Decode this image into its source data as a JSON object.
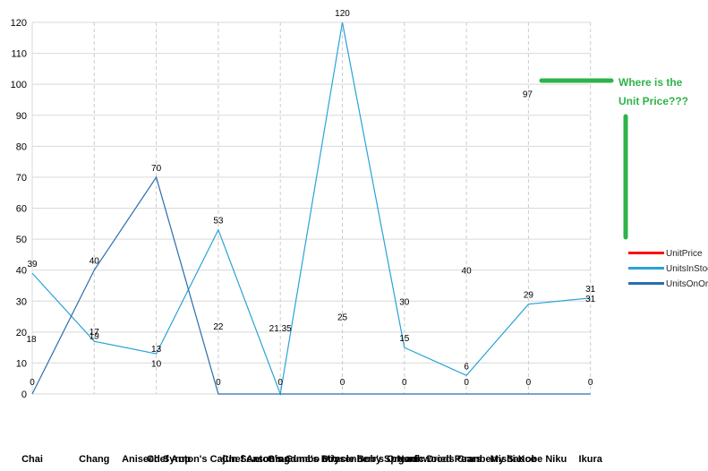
{
  "chart_data": {
    "type": "line",
    "categories": [
      "Chai",
      "Chang",
      "Aniseed Syrup",
      "Chef Anton's Cajun Seasoning",
      "Chef Anton's Gumbo Mix",
      "Grandma's Boysenberry Spread",
      "Uncle Bob's Organic Dried Pears",
      "Northwoods Cranberry Sauce",
      "Mishi Kobe Niku",
      "Ikura"
    ],
    "series": [
      {
        "name": "UnitPrice",
        "values": [
          18,
          19,
          10,
          22,
          21.35,
          25,
          30,
          40,
          97,
          31
        ],
        "color": "#ff0000",
        "drawn": false
      },
      {
        "name": "UnitsInStock",
        "values": [
          39,
          17,
          13,
          53,
          0,
          120,
          15,
          6,
          29,
          31
        ],
        "color": "#29a3d6"
      },
      {
        "name": "UnitsOnOrder",
        "values": [
          0,
          40,
          70,
          0,
          0,
          0,
          0,
          0,
          0,
          0
        ],
        "color": "#2a6db0"
      }
    ],
    "yticks": [
      0,
      10,
      20,
      30,
      40,
      50,
      60,
      70,
      80,
      90,
      100,
      110,
      120
    ],
    "ylim": [
      0,
      120
    ],
    "grid": true,
    "legend_position": "right",
    "title": "",
    "xlabel": "",
    "ylabel": ""
  },
  "annotation": {
    "text_line1": "Where is the",
    "text_line2": "Unit Price???",
    "color": "#2eb34a"
  }
}
